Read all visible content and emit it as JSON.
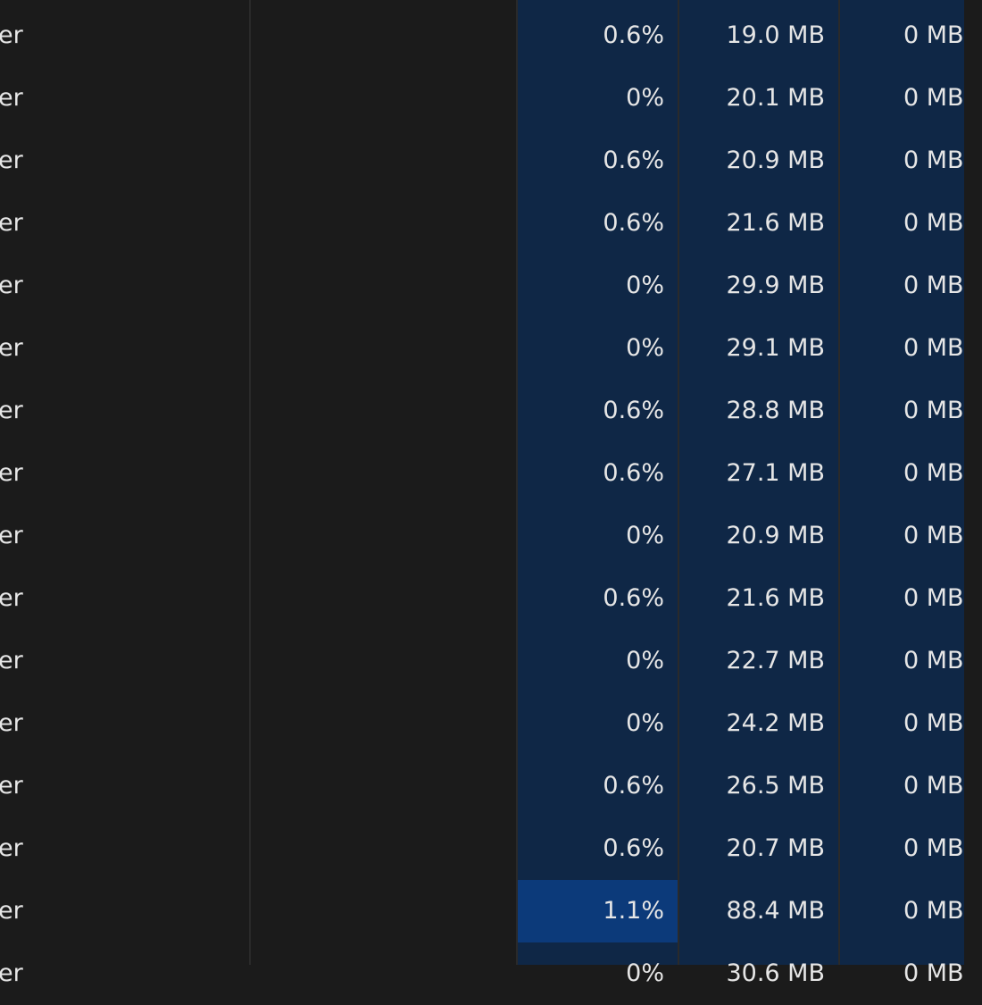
{
  "columns": {
    "cpu_heat_color": "#0f2746",
    "memory_heat_color": "#0f2746",
    "disk_heat_color": "#0f2746",
    "highlight_color": "#0c3a7a"
  },
  "rows": [
    {
      "name": "er",
      "cpu": "0.6%",
      "memory": "19.0 MB",
      "disk": "0 MB"
    },
    {
      "name": "er",
      "cpu": "0%",
      "memory": "20.1 MB",
      "disk": "0 MB"
    },
    {
      "name": "er",
      "cpu": "0.6%",
      "memory": "20.9 MB",
      "disk": "0 MB"
    },
    {
      "name": "er",
      "cpu": "0.6%",
      "memory": "21.6 MB",
      "disk": "0 MB"
    },
    {
      "name": "er",
      "cpu": "0%",
      "memory": "29.9 MB",
      "disk": "0 MB"
    },
    {
      "name": "er",
      "cpu": "0%",
      "memory": "29.1 MB",
      "disk": "0 MB"
    },
    {
      "name": "er",
      "cpu": "0.6%",
      "memory": "28.8 MB",
      "disk": "0 MB"
    },
    {
      "name": "er",
      "cpu": "0.6%",
      "memory": "27.1 MB",
      "disk": "0 MB"
    },
    {
      "name": "er",
      "cpu": "0%",
      "memory": "20.9 MB",
      "disk": "0 MB"
    },
    {
      "name": "er",
      "cpu": "0.6%",
      "memory": "21.6 MB",
      "disk": "0 MB"
    },
    {
      "name": "er",
      "cpu": "0%",
      "memory": "22.7 MB",
      "disk": "0 MB"
    },
    {
      "name": "er",
      "cpu": "0%",
      "memory": "24.2 MB",
      "disk": "0 MB"
    },
    {
      "name": "er",
      "cpu": "0.6%",
      "memory": "26.5 MB",
      "disk": "0 MB"
    },
    {
      "name": "er",
      "cpu": "0.6%",
      "memory": "20.7 MB",
      "disk": "0 MB"
    },
    {
      "name": "er",
      "cpu": "1.1%",
      "memory": "88.4 MB",
      "disk": "0 MB",
      "highlight": true
    },
    {
      "name": "er",
      "cpu": "0%",
      "memory": "30.6 MB",
      "disk": "0 MB"
    }
  ]
}
